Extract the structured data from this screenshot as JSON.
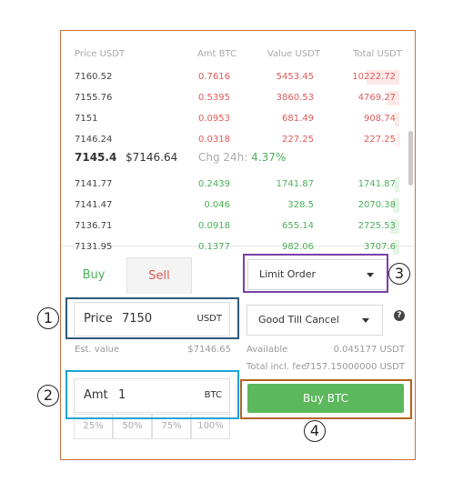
{
  "orderbook": {
    "headers": {
      "price": "Price USDT",
      "amt": "Amt BTC",
      "value": "Value USDT",
      "total": "Total USDT"
    },
    "asks": [
      {
        "price": "7160.52",
        "amt": "0.7616",
        "value": "5453.45",
        "total": "10222.72",
        "depth": 0.6
      },
      {
        "price": "7155.76",
        "amt": "0.5395",
        "value": "3860.53",
        "total": "4769.27",
        "depth": 0.22
      },
      {
        "price": "7151",
        "amt": "0.0953",
        "value": "681.49",
        "total": "908.74",
        "depth": 0.08
      },
      {
        "price": "7146.24",
        "amt": "0.0318",
        "value": "227.25",
        "total": "227.25",
        "depth": 0.03
      }
    ],
    "mid": {
      "last": "7145.4",
      "usd": "$7146.64",
      "chg_label": "Chg 24h:",
      "chg_value": "4.37%"
    },
    "bids": [
      {
        "price": "7141.77",
        "amt": "0.2439",
        "value": "1741.87",
        "total": "1741.87",
        "depth": 0.09
      },
      {
        "price": "7141.47",
        "amt": "0.046",
        "value": "328.5",
        "total": "2070.38",
        "depth": 0.12
      },
      {
        "price": "7136.71",
        "amt": "0.0918",
        "value": "655.14",
        "total": "2725.53",
        "depth": 0.16
      },
      {
        "price": "7131.95",
        "amt": "0.1377",
        "value": "982.06",
        "total": "3707.6",
        "depth": 0.12
      }
    ]
  },
  "tabs": {
    "buy": "Buy",
    "sell": "Sell"
  },
  "order_type": {
    "selected": "Limit Order"
  },
  "time_in_force": {
    "selected": "Good Till Cancel"
  },
  "help_icon": "?",
  "price_field": {
    "label": "Price",
    "value": "7150",
    "unit": "USDT"
  },
  "est_value": {
    "label": "Est. value",
    "value": "$7146.65"
  },
  "available": {
    "label": "Available",
    "value": "0.045177 USDT"
  },
  "total_fee": {
    "label": "Total incl. fee",
    "value": "7157.15000000 USDT"
  },
  "amt_field": {
    "label": "Amt",
    "value": "1",
    "unit": "BTC"
  },
  "percent_buttons": [
    "25%",
    "50%",
    "75%",
    "100%"
  ],
  "buy_button": "Buy BTC",
  "annotations": [
    {
      "num": "1",
      "color": "#2f5a7a"
    },
    {
      "num": "2",
      "color": "#1aa3d9"
    },
    {
      "num": "3",
      "color": "#7a3fa8"
    },
    {
      "num": "4",
      "color": "#b5651d"
    }
  ]
}
